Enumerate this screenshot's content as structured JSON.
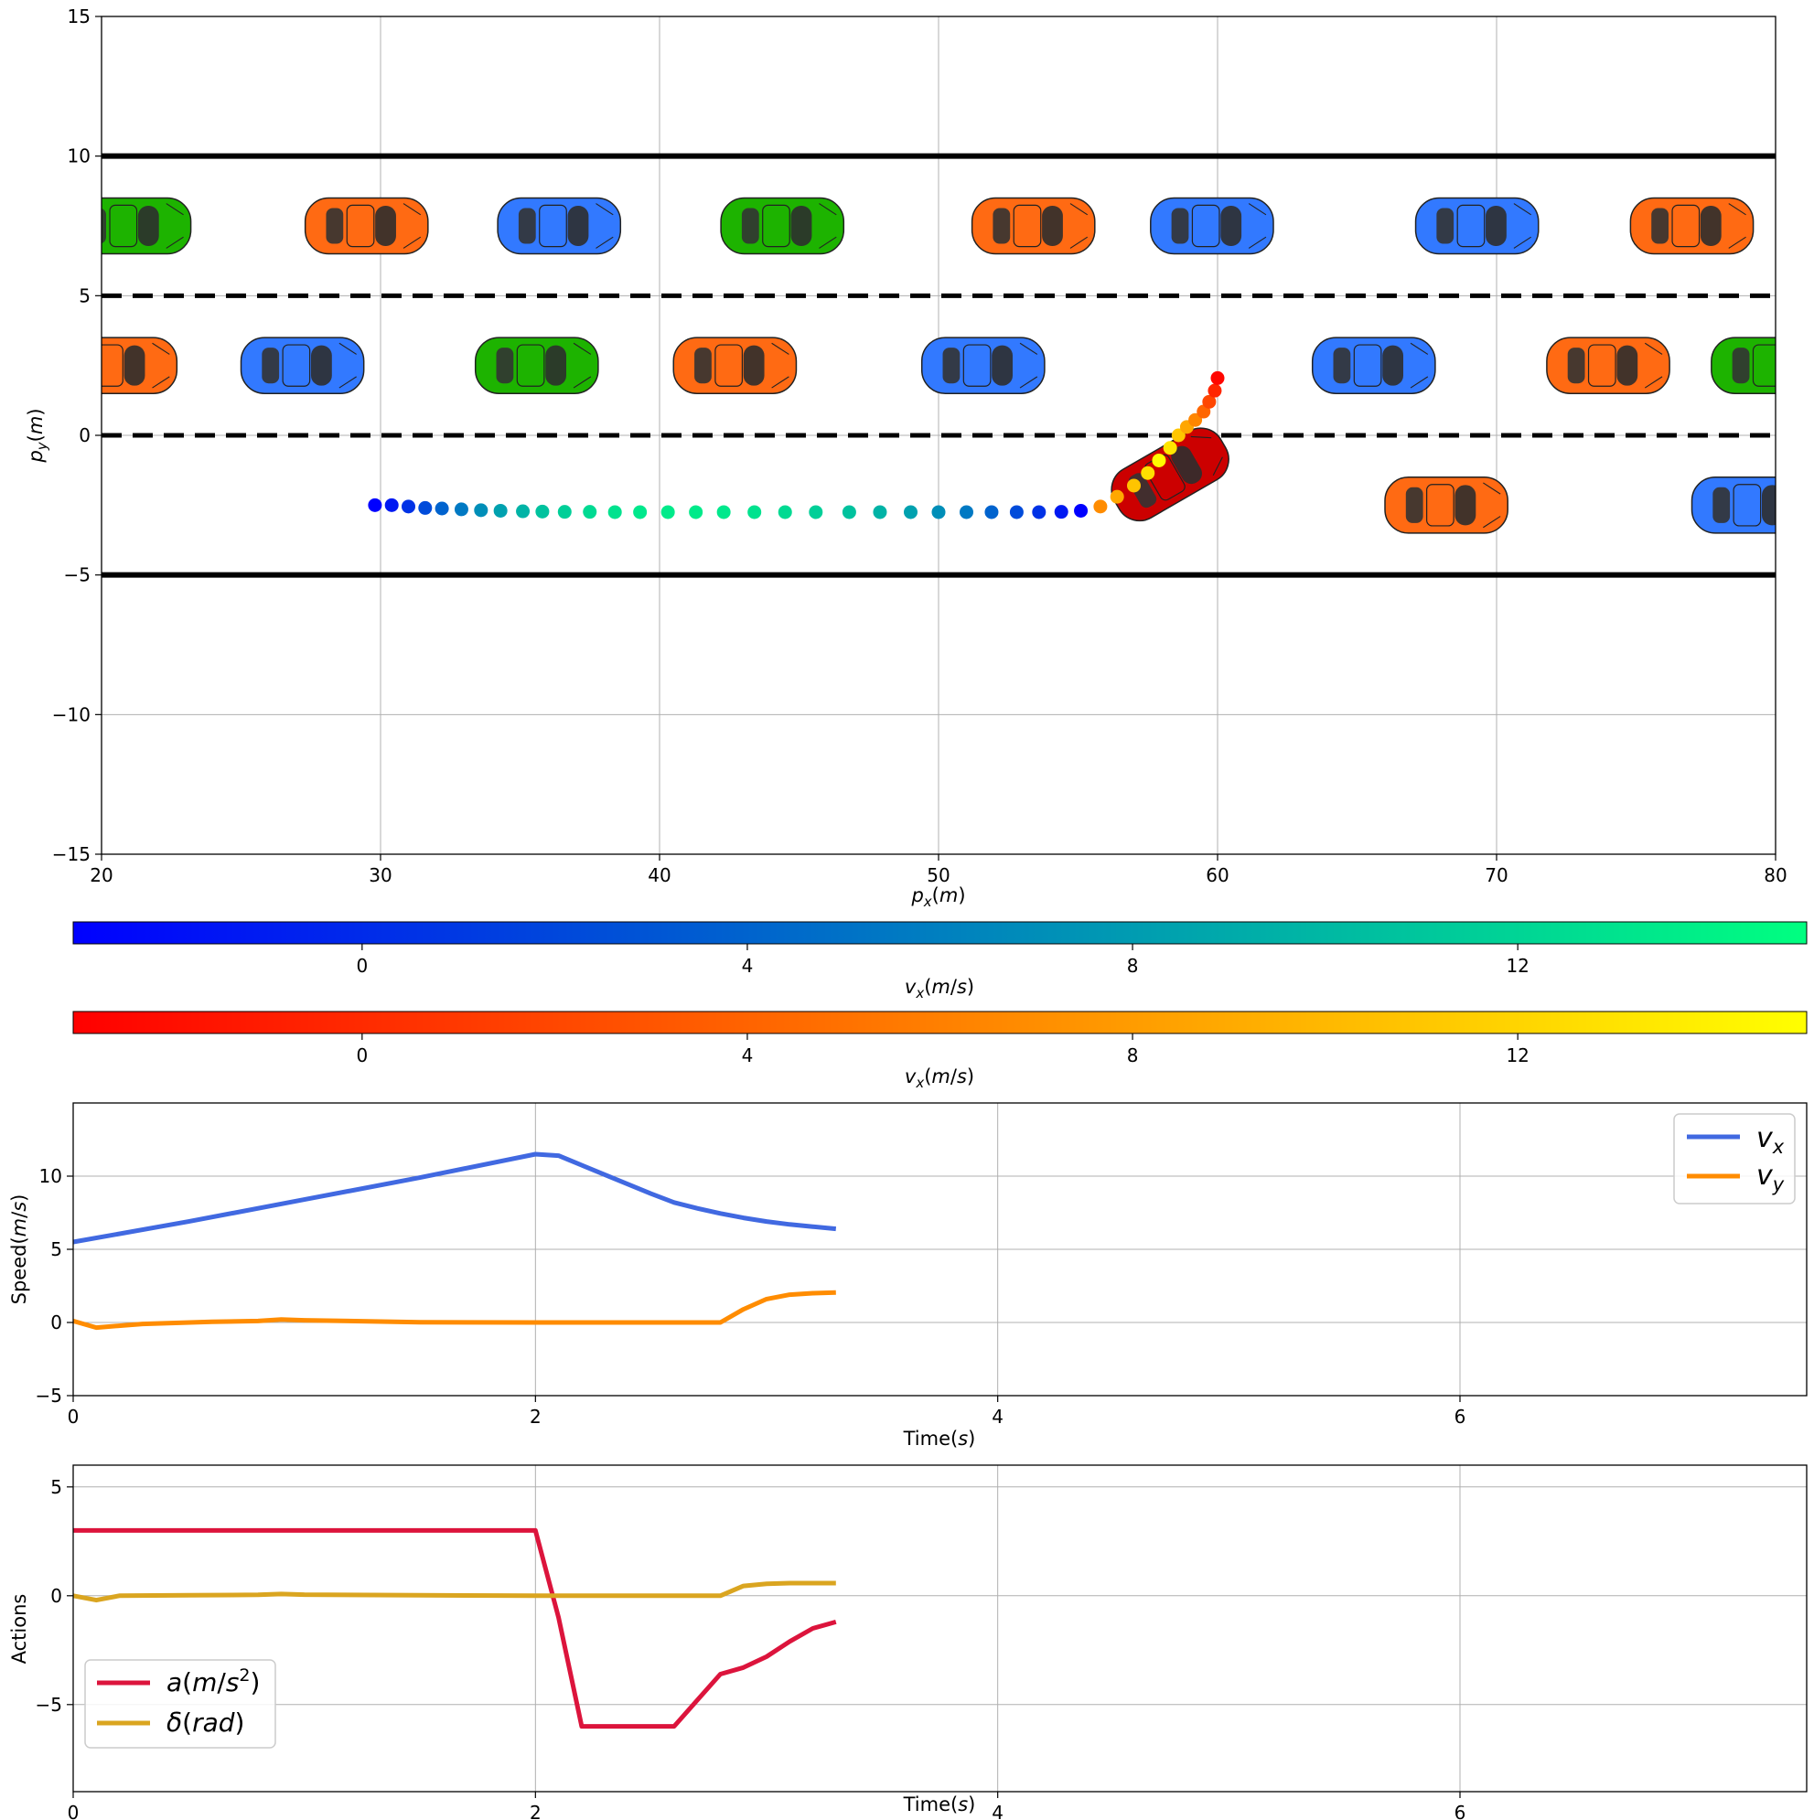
{
  "chart_data": [
    {
      "type": "scatter",
      "xlabel": "p_x(m)",
      "ylabel": "p_y(m)",
      "xlim": [
        20,
        80
      ],
      "ylim": [
        -15,
        15
      ],
      "x_ticks": [
        "20",
        "30",
        "40",
        "50",
        "60",
        "70",
        "80"
      ],
      "y_ticks": [
        "15",
        "10",
        "5",
        "0",
        "−5",
        "−10",
        "−15"
      ],
      "grid": true,
      "road_boundaries_y": [
        10,
        -5
      ],
      "lane_dividers_y": [
        5,
        0
      ],
      "vehicles": [
        {
          "x": 21.0,
          "y": 7.5,
          "color": "#1db300"
        },
        {
          "x": 29.5,
          "y": 7.5,
          "color": "#ff6a13"
        },
        {
          "x": 36.4,
          "y": 7.5,
          "color": "#3279ff"
        },
        {
          "x": 44.4,
          "y": 7.5,
          "color": "#1db300"
        },
        {
          "x": 53.4,
          "y": 7.5,
          "color": "#ff6a13"
        },
        {
          "x": 59.8,
          "y": 7.5,
          "color": "#3279ff"
        },
        {
          "x": 69.3,
          "y": 7.5,
          "color": "#3279ff"
        },
        {
          "x": 77.0,
          "y": 7.5,
          "color": "#ff6a13"
        },
        {
          "x": 20.5,
          "y": 2.5,
          "color": "#ff6a13"
        },
        {
          "x": 27.2,
          "y": 2.5,
          "color": "#3279ff"
        },
        {
          "x": 35.6,
          "y": 2.5,
          "color": "#1db300"
        },
        {
          "x": 42.7,
          "y": 2.5,
          "color": "#ff6a13"
        },
        {
          "x": 51.6,
          "y": 2.5,
          "color": "#3279ff"
        },
        {
          "x": 65.6,
          "y": 2.5,
          "color": "#3279ff"
        },
        {
          "x": 74.0,
          "y": 2.5,
          "color": "#ff6a13"
        },
        {
          "x": 79.9,
          "y": 2.5,
          "color": "#1db300"
        },
        {
          "x": 68.2,
          "y": -2.5,
          "color": "#ff6a13"
        },
        {
          "x": 79.2,
          "y": -2.5,
          "color": "#3279ff"
        }
      ],
      "ego_vehicle": {
        "x": 58.3,
        "y": -1.4,
        "heading_deg": 30,
        "color": "#cc0000"
      },
      "trajectory": {
        "x": [
          29.8,
          30.4,
          31.0,
          31.6,
          32.2,
          32.9,
          33.6,
          34.3,
          35.1,
          35.8,
          36.6,
          37.5,
          38.4,
          39.3,
          40.3,
          41.3,
          42.3,
          43.4,
          44.5,
          45.6,
          46.8,
          47.9,
          49.0,
          50.0,
          51.0,
          51.9,
          52.8,
          53.6,
          54.4,
          55.1,
          55.8,
          56.4,
          57.0,
          57.5,
          57.9,
          58.3,
          58.6,
          58.9,
          59.2,
          59.5,
          59.7,
          59.9,
          60.0
        ],
        "y": [
          -2.5,
          -2.5,
          -2.55,
          -2.6,
          -2.62,
          -2.65,
          -2.68,
          -2.7,
          -2.72,
          -2.73,
          -2.74,
          -2.74,
          -2.75,
          -2.75,
          -2.75,
          -2.75,
          -2.75,
          -2.75,
          -2.75,
          -2.75,
          -2.75,
          -2.75,
          -2.75,
          -2.75,
          -2.75,
          -2.75,
          -2.75,
          -2.75,
          -2.74,
          -2.7,
          -2.55,
          -2.2,
          -1.8,
          -1.35,
          -0.9,
          -0.45,
          0.0,
          0.3,
          0.55,
          0.85,
          1.2,
          1.6,
          2.05
        ],
        "color_value": "v_x(m/s)",
        "phase_1_colorbar": 0,
        "phase_2_colorbar": 1,
        "phase_switch_index": 30
      }
    },
    {
      "type": "colorbar",
      "label": "v_x(m/s)",
      "ticks": [
        "0",
        "4",
        "8",
        "12"
      ],
      "range": [
        -3,
        15
      ],
      "colors": [
        "#0000ff",
        "#00ff80"
      ]
    },
    {
      "type": "colorbar",
      "label": "v_x(m/s)",
      "ticks": [
        "0",
        "4",
        "8",
        "12"
      ],
      "range": [
        -3,
        15
      ],
      "colors": [
        "#ff0000",
        "#ffff00"
      ]
    },
    {
      "type": "line",
      "xlabel": "Time(s)",
      "ylabel": "Speed(m/s)",
      "xlim": [
        0,
        7.5
      ],
      "ylim": [
        -5,
        15
      ],
      "x_ticks": [
        "0",
        "2",
        "4",
        "6"
      ],
      "y_ticks": [
        "10",
        "5",
        "0",
        "−5"
      ],
      "grid": true,
      "legend_position": "top-right",
      "series": [
        {
          "name": "v_x",
          "color": "#4169e1",
          "x": [
            0,
            0.5,
            1.0,
            1.5,
            2.0,
            2.1,
            2.3,
            2.5,
            2.6,
            2.7,
            2.8,
            2.9,
            3.0,
            3.1,
            3.2,
            3.3
          ],
          "y": [
            5.5,
            6.9,
            8.4,
            9.9,
            11.5,
            11.4,
            10.1,
            8.8,
            8.2,
            7.8,
            7.45,
            7.15,
            6.9,
            6.7,
            6.55,
            6.4
          ]
        },
        {
          "name": "v_y",
          "color": "#ff8c00",
          "x": [
            0,
            0.1,
            0.3,
            0.6,
            0.8,
            0.9,
            1.0,
            1.5,
            2.0,
            2.5,
            2.8,
            2.9,
            3.0,
            3.1,
            3.2,
            3.3
          ],
          "y": [
            0.1,
            -0.35,
            -0.1,
            0.05,
            0.1,
            0.2,
            0.15,
            0.02,
            0.0,
            0.0,
            0.0,
            0.9,
            1.6,
            1.9,
            2.0,
            2.05
          ]
        }
      ]
    },
    {
      "type": "line",
      "xlabel": "Time(s)",
      "ylabel": "Actions",
      "xlim": [
        0,
        7.5
      ],
      "ylim": [
        -9,
        6
      ],
      "x_ticks": [
        "0",
        "2",
        "4",
        "6"
      ],
      "y_ticks": [
        "5",
        "0",
        "−5"
      ],
      "grid": true,
      "legend_position": "bottom-left",
      "series": [
        {
          "name": "a(m/s^2)",
          "color": "#dc143c",
          "x": [
            0,
            2.0,
            2.1,
            2.2,
            2.6,
            2.7,
            2.8,
            2.9,
            3.0,
            3.1,
            3.2,
            3.3
          ],
          "y": [
            3.0,
            3.0,
            -1.0,
            -6.0,
            -6.0,
            -4.8,
            -3.6,
            -3.3,
            -2.8,
            -2.1,
            -1.5,
            -1.2
          ]
        },
        {
          "name": "δ(rad)",
          "color": "#daa520",
          "x": [
            0,
            0.1,
            0.2,
            0.5,
            0.8,
            0.9,
            1.0,
            1.5,
            2.0,
            2.5,
            2.8,
            2.9,
            3.0,
            3.1,
            3.2,
            3.3
          ],
          "y": [
            0.0,
            -0.2,
            0.0,
            0.02,
            0.04,
            0.08,
            0.05,
            0.02,
            0.0,
            0.0,
            0.0,
            0.45,
            0.55,
            0.58,
            0.58,
            0.58
          ]
        }
      ]
    }
  ]
}
